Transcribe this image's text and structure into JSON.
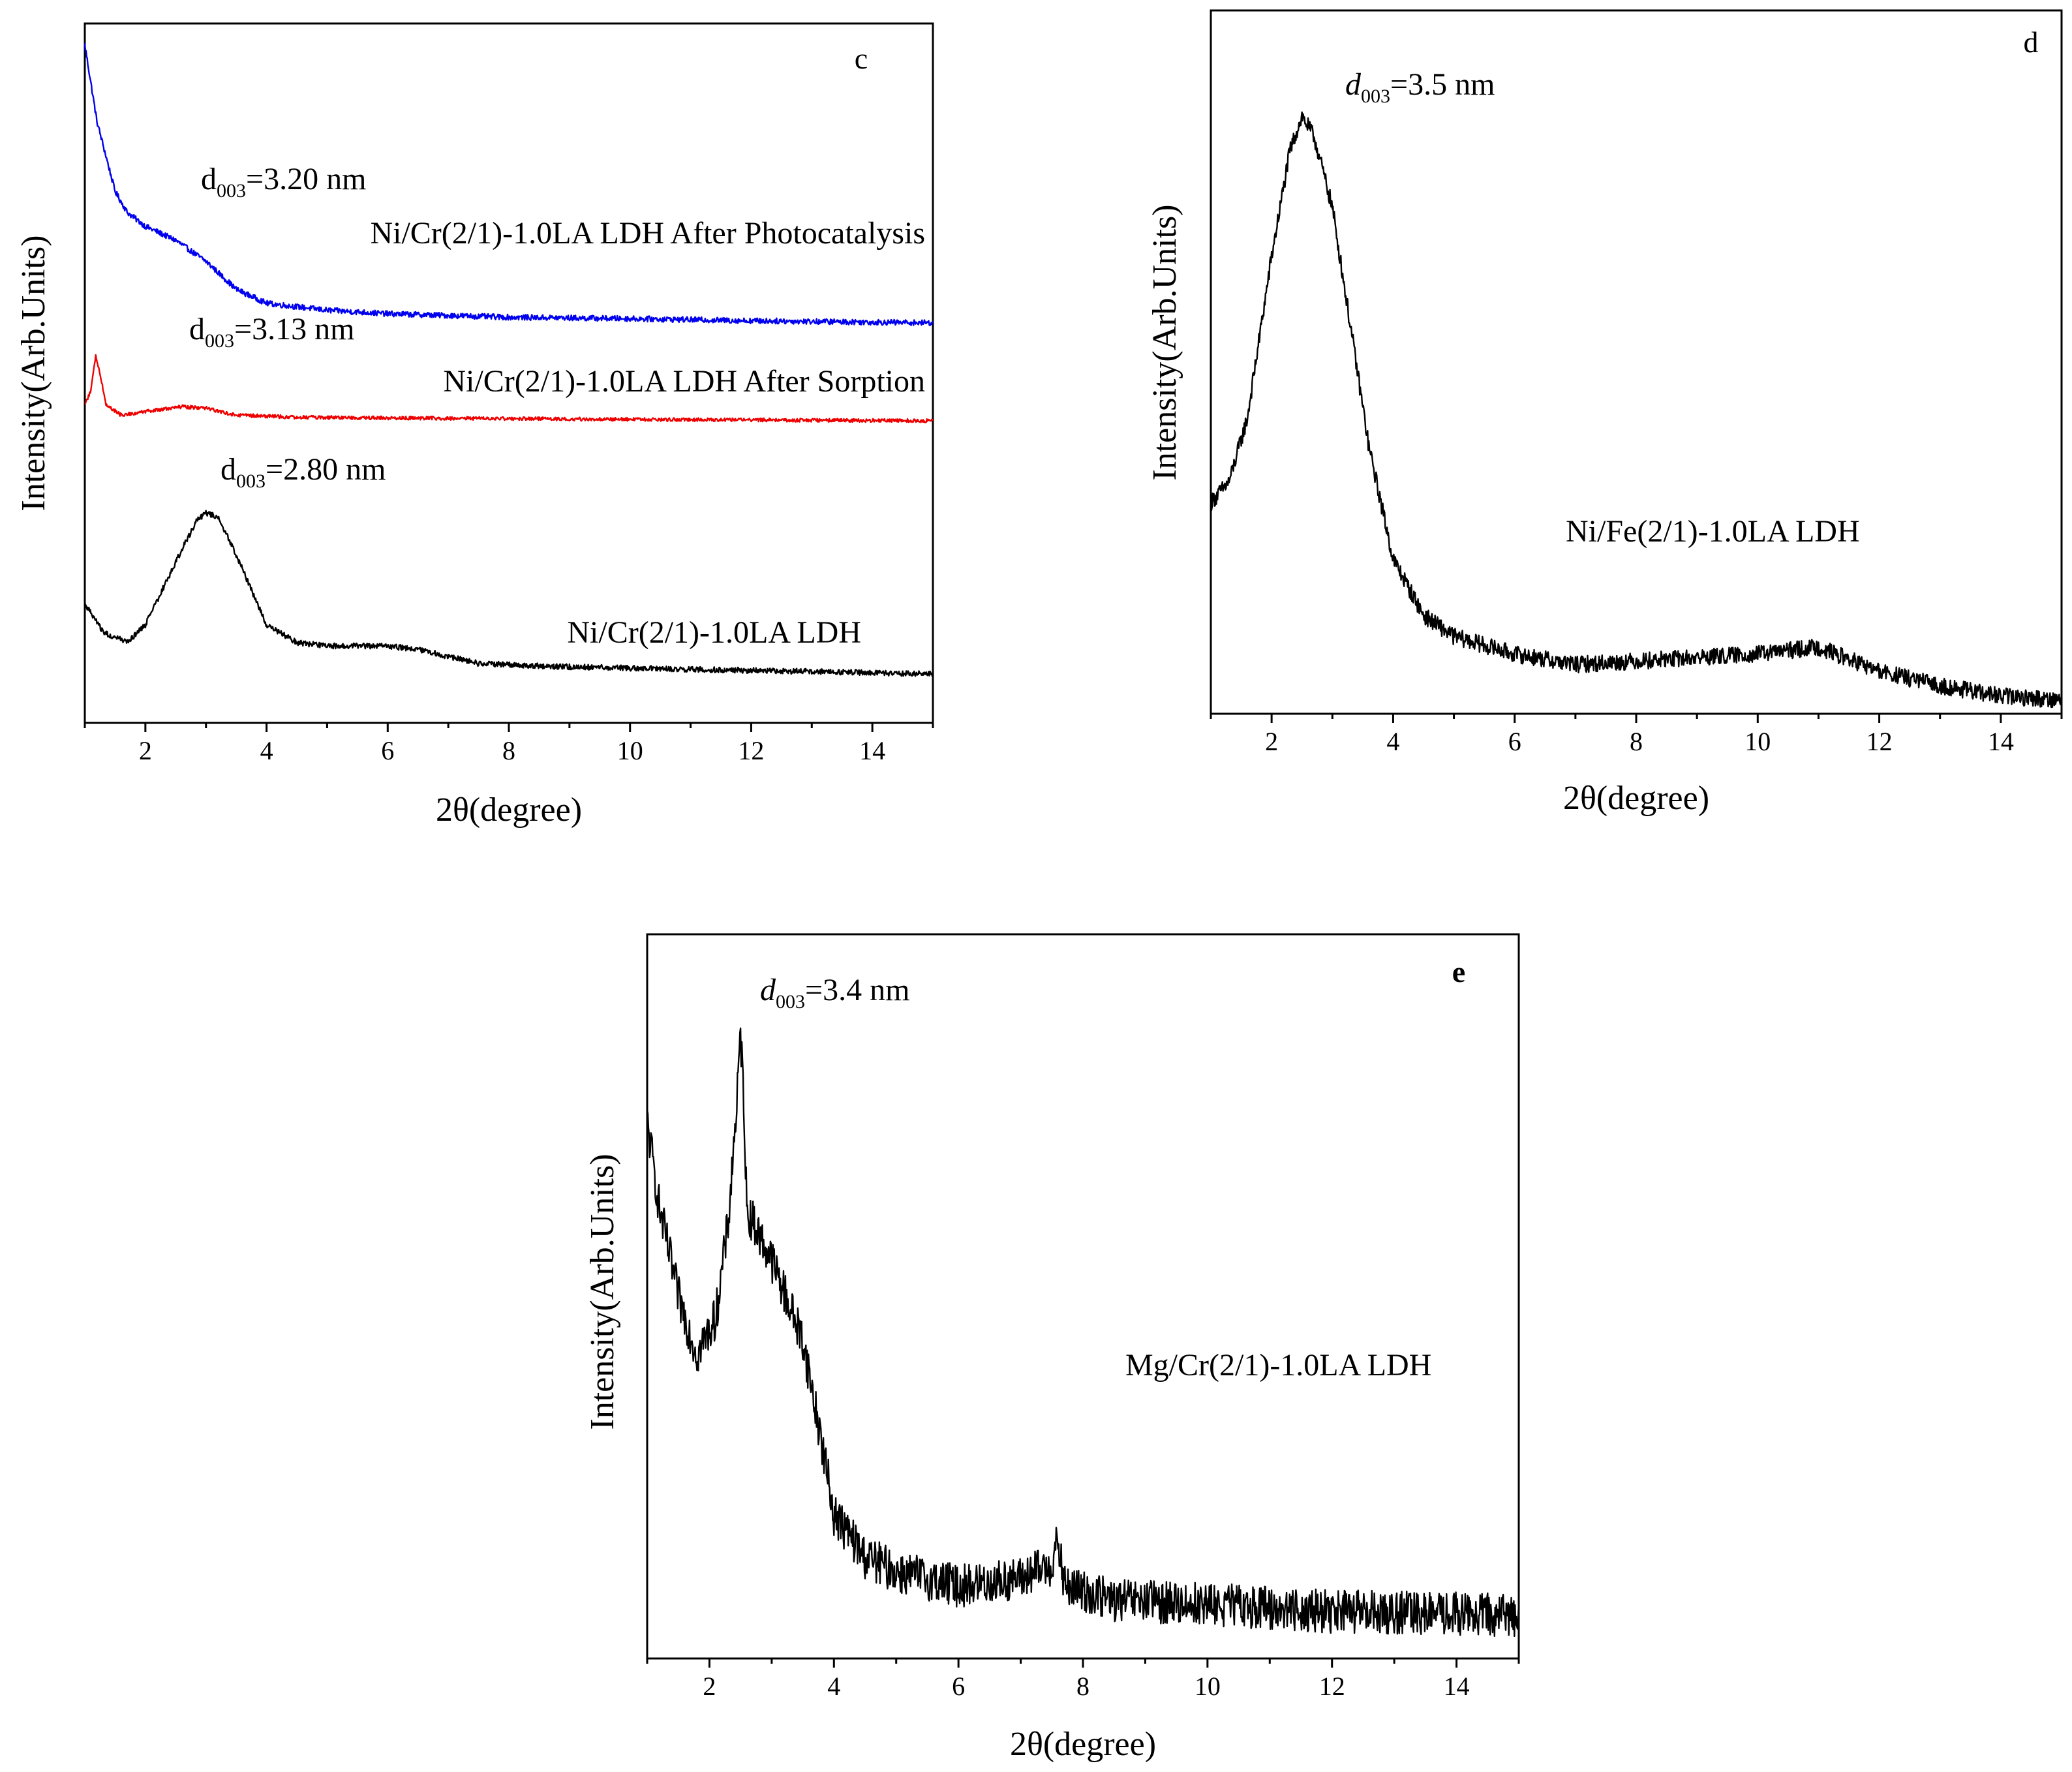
{
  "chart_data": [
    {
      "panel": "c",
      "type": "line",
      "xlabel": "2θ(degree)",
      "ylabel": "Intensity(Arb.Units)",
      "xlim": [
        1,
        15
      ],
      "ylim": [
        0,
        1
      ],
      "x_ticks": [
        2,
        4,
        6,
        8,
        10,
        12,
        14
      ],
      "y_ticks": [],
      "grid": false,
      "series": [
        {
          "name": "Ni/Cr(2/1)-1.0LA LDH After Photocatalysis",
          "color": "#0000ee",
          "noise": 0.004,
          "points": [
            [
              1,
              0.97
            ],
            [
              1.2,
              0.86
            ],
            [
              1.5,
              0.76
            ],
            [
              1.7,
              0.73
            ],
            [
              2.0,
              0.71
            ],
            [
              2.5,
              0.69
            ],
            [
              3.0,
              0.66
            ],
            [
              3.5,
              0.62
            ],
            [
              4.0,
              0.6
            ],
            [
              5.0,
              0.59
            ],
            [
              6.0,
              0.585
            ],
            [
              8.0,
              0.58
            ],
            [
              10.0,
              0.578
            ],
            [
              12.0,
              0.575
            ],
            [
              15.0,
              0.572
            ]
          ]
        },
        {
          "name": "Ni/Cr(2/1)-1.0LA LDH After Sorption",
          "color": "#ee0000",
          "noise": 0.0025,
          "points": [
            [
              1,
              0.455
            ],
            [
              1.1,
              0.475
            ],
            [
              1.18,
              0.525
            ],
            [
              1.25,
              0.5
            ],
            [
              1.35,
              0.455
            ],
            [
              1.6,
              0.44
            ],
            [
              2.0,
              0.445
            ],
            [
              2.6,
              0.452
            ],
            [
              3.0,
              0.45
            ],
            [
              3.5,
              0.44
            ],
            [
              4.5,
              0.437
            ],
            [
              6.0,
              0.436
            ],
            [
              10.0,
              0.434
            ],
            [
              15.0,
              0.432
            ]
          ]
        },
        {
          "name": "Ni/Cr(2/1)-1.0LA LDH",
          "color": "#000000",
          "noise": 0.004,
          "points": [
            [
              1,
              0.17
            ],
            [
              1.3,
              0.13
            ],
            [
              1.7,
              0.115
            ],
            [
              2.0,
              0.14
            ],
            [
              2.5,
              0.23
            ],
            [
              2.85,
              0.29
            ],
            [
              3.0,
              0.3
            ],
            [
              3.2,
              0.295
            ],
            [
              3.5,
              0.24
            ],
            [
              4.0,
              0.14
            ],
            [
              4.5,
              0.115
            ],
            [
              5.0,
              0.11
            ],
            [
              6.0,
              0.11
            ],
            [
              6.5,
              0.105
            ],
            [
              7.5,
              0.085
            ],
            [
              9.0,
              0.08
            ],
            [
              12.0,
              0.075
            ],
            [
              15.0,
              0.07
            ]
          ]
        }
      ],
      "annotations": [
        {
          "d_prefix": "d",
          "d_sub": "003",
          "d_value": "=3.20 nm",
          "series_label": "Ni/Cr(2/1)-1.0LA LDH After Photocatalysis"
        },
        {
          "d_prefix": "d",
          "d_sub": "003",
          "d_value": "=3.13 nm",
          "series_label": "Ni/Cr(2/1)-1.0LA LDH After Sorption"
        },
        {
          "d_prefix": "d",
          "d_sub": "003",
          "d_value": "=2.80 nm",
          "series_label": "Ni/Cr(2/1)-1.0LA LDH"
        }
      ]
    },
    {
      "panel": "d",
      "type": "line",
      "xlabel": "2θ(degree)",
      "ylabel": "Intensity(Arb.Units)",
      "xlim": [
        1,
        15
      ],
      "ylim": [
        0,
        1
      ],
      "x_ticks": [
        2,
        4,
        6,
        8,
        10,
        12,
        14
      ],
      "y_ticks": [],
      "grid": false,
      "series": [
        {
          "name": "Ni/Fe(2/1)-1.0LA LDH",
          "color": "#000000",
          "noise": 0.012,
          "points": [
            [
              1,
              0.3
            ],
            [
              1.3,
              0.33
            ],
            [
              1.6,
              0.42
            ],
            [
              2.0,
              0.65
            ],
            [
              2.3,
              0.8
            ],
            [
              2.5,
              0.85
            ],
            [
              2.7,
              0.82
            ],
            [
              3.0,
              0.72
            ],
            [
              3.3,
              0.55
            ],
            [
              3.6,
              0.38
            ],
            [
              4.0,
              0.22
            ],
            [
              4.5,
              0.14
            ],
            [
              5.0,
              0.11
            ],
            [
              6.0,
              0.085
            ],
            [
              7.0,
              0.07
            ],
            [
              8.0,
              0.075
            ],
            [
              9.0,
              0.08
            ],
            [
              10.0,
              0.085
            ],
            [
              11.0,
              0.095
            ],
            [
              12.0,
              0.06
            ],
            [
              13.0,
              0.04
            ],
            [
              14.0,
              0.025
            ],
            [
              15.0,
              0.02
            ]
          ]
        }
      ],
      "annotations": [
        {
          "d_prefix": "d",
          "d_sub": "003",
          "d_value": "=3.5 nm"
        },
        {
          "series_label": "Ni/Fe(2/1)-1.0LA LDH"
        }
      ]
    },
    {
      "panel": "e",
      "type": "line",
      "xlabel": "2θ(degree)",
      "ylabel": "Intensity(Arb.Units)",
      "xlim": [
        1,
        15
      ],
      "ylim": [
        0,
        1
      ],
      "x_ticks": [
        2,
        4,
        6,
        8,
        10,
        12,
        14
      ],
      "y_ticks": [],
      "grid": false,
      "series": [
        {
          "name": "Mg/Cr(2/1)-1.0LA LDH",
          "color": "#000000",
          "noise": 0.03,
          "points": [
            [
              1,
              0.74
            ],
            [
              1.2,
              0.62
            ],
            [
              1.5,
              0.5
            ],
            [
              1.8,
              0.42
            ],
            [
              2.1,
              0.47
            ],
            [
              2.3,
              0.6
            ],
            [
              2.45,
              0.78
            ],
            [
              2.5,
              0.86
            ],
            [
              2.55,
              0.78
            ],
            [
              2.6,
              0.62
            ],
            [
              3.0,
              0.55
            ],
            [
              3.5,
              0.44
            ],
            [
              3.8,
              0.3
            ],
            [
              4.0,
              0.2
            ],
            [
              4.5,
              0.14
            ],
            [
              5.0,
              0.12
            ],
            [
              6.0,
              0.1
            ],
            [
              7.0,
              0.11
            ],
            [
              7.5,
              0.13
            ],
            [
              7.6,
              0.16
            ],
            [
              7.7,
              0.1
            ],
            [
              8.5,
              0.08
            ],
            [
              10.0,
              0.075
            ],
            [
              12.0,
              0.065
            ],
            [
              15.0,
              0.06
            ]
          ]
        }
      ],
      "annotations": [
        {
          "d_prefix": "d",
          "d_sub": "003",
          "d_value": "=3.4 nm"
        },
        {
          "series_label": "Mg/Cr(2/1)-1.0LA LDH"
        }
      ]
    }
  ]
}
